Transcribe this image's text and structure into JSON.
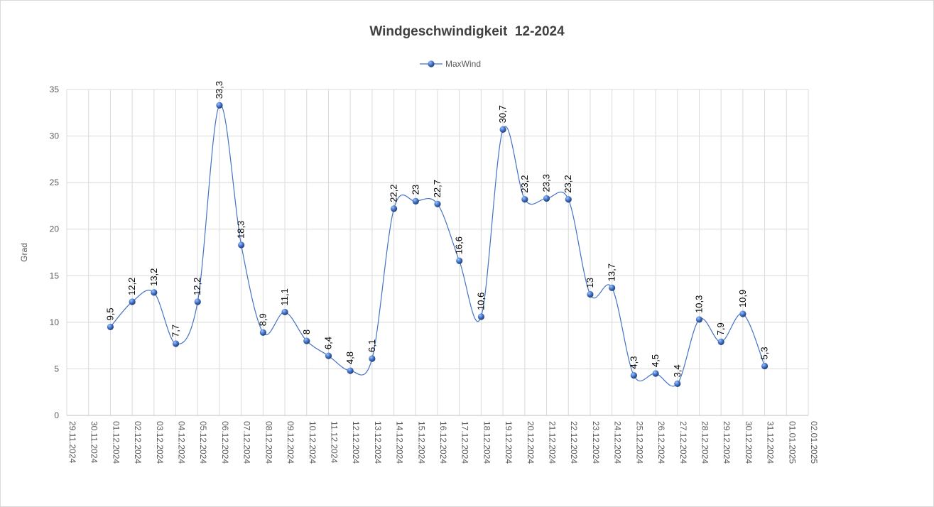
{
  "chart_data": {
    "type": "line",
    "title": "Windgeschwindigkeit  12-2024",
    "ylabel": "Grad",
    "xlabel": "",
    "ylim": [
      0,
      35
    ],
    "yticks": [
      0,
      5,
      10,
      15,
      20,
      25,
      30,
      35
    ],
    "grid": true,
    "legend_position": "top",
    "smooth": true,
    "x_tick_labels": [
      "29.11.2024",
      "30.11.2024",
      "01.12.2024",
      "02.12.2024",
      "03.12.2024",
      "04.12.2024",
      "05.12.2024",
      "06.12.2024",
      "07.12.2024",
      "08.12.2024",
      "09.12.2024",
      "10.12.2024",
      "11.12.2024",
      "12.12.2024",
      "13.12.2024",
      "14.12.2024",
      "15.12.2024",
      "16.12.2024",
      "17.12.2024",
      "18.12.2024",
      "19.12.2024",
      "20.12.2024",
      "21.12.2024",
      "22.12.2024",
      "23.12.2024",
      "24.12.2024",
      "25.12.2024",
      "26.12.2024",
      "27.12.2024",
      "28.12.2024",
      "29.12.2024",
      "30.12.2024",
      "31.12.2024",
      "01.01.2025",
      "02.01.2025"
    ],
    "series": [
      {
        "name": "MaxWind",
        "color": "#4472c4",
        "x": [
          "01.12.2024",
          "02.12.2024",
          "03.12.2024",
          "04.12.2024",
          "05.12.2024",
          "06.12.2024",
          "07.12.2024",
          "08.12.2024",
          "09.12.2024",
          "10.12.2024",
          "11.12.2024",
          "12.12.2024",
          "13.12.2024",
          "14.12.2024",
          "15.12.2024",
          "16.12.2024",
          "17.12.2024",
          "18.12.2024",
          "19.12.2024",
          "20.12.2024",
          "21.12.2024",
          "22.12.2024",
          "23.12.2024",
          "24.12.2024",
          "25.12.2024",
          "26.12.2024",
          "27.12.2024",
          "28.12.2024",
          "29.12.2024",
          "30.12.2024",
          "31.12.2024"
        ],
        "values": [
          9.5,
          12.2,
          13.2,
          7.7,
          12.2,
          33.3,
          18.3,
          8.9,
          11.1,
          8,
          6.4,
          4.8,
          6.1,
          22.2,
          23,
          22.7,
          16.6,
          10.6,
          30.7,
          23.2,
          23.3,
          23.2,
          13,
          13.7,
          4.3,
          4.5,
          3.4,
          10.3,
          7.9,
          10.9,
          5.3
        ],
        "labels": [
          "9,5",
          "12,2",
          "13,2",
          "7,7",
          "12,2",
          "33,3",
          "18,3",
          "8,9",
          "11,1",
          "8",
          "6,4",
          "4,8",
          "6,1",
          "22,2",
          "23",
          "22,7",
          "16,6",
          "10,6",
          "30,7",
          "23,2",
          "23,3",
          "23,2",
          "13",
          "13,7",
          "4,3",
          "4,5",
          "3,4",
          "10,3",
          "7,9",
          "10,9",
          "5,3"
        ]
      }
    ]
  }
}
